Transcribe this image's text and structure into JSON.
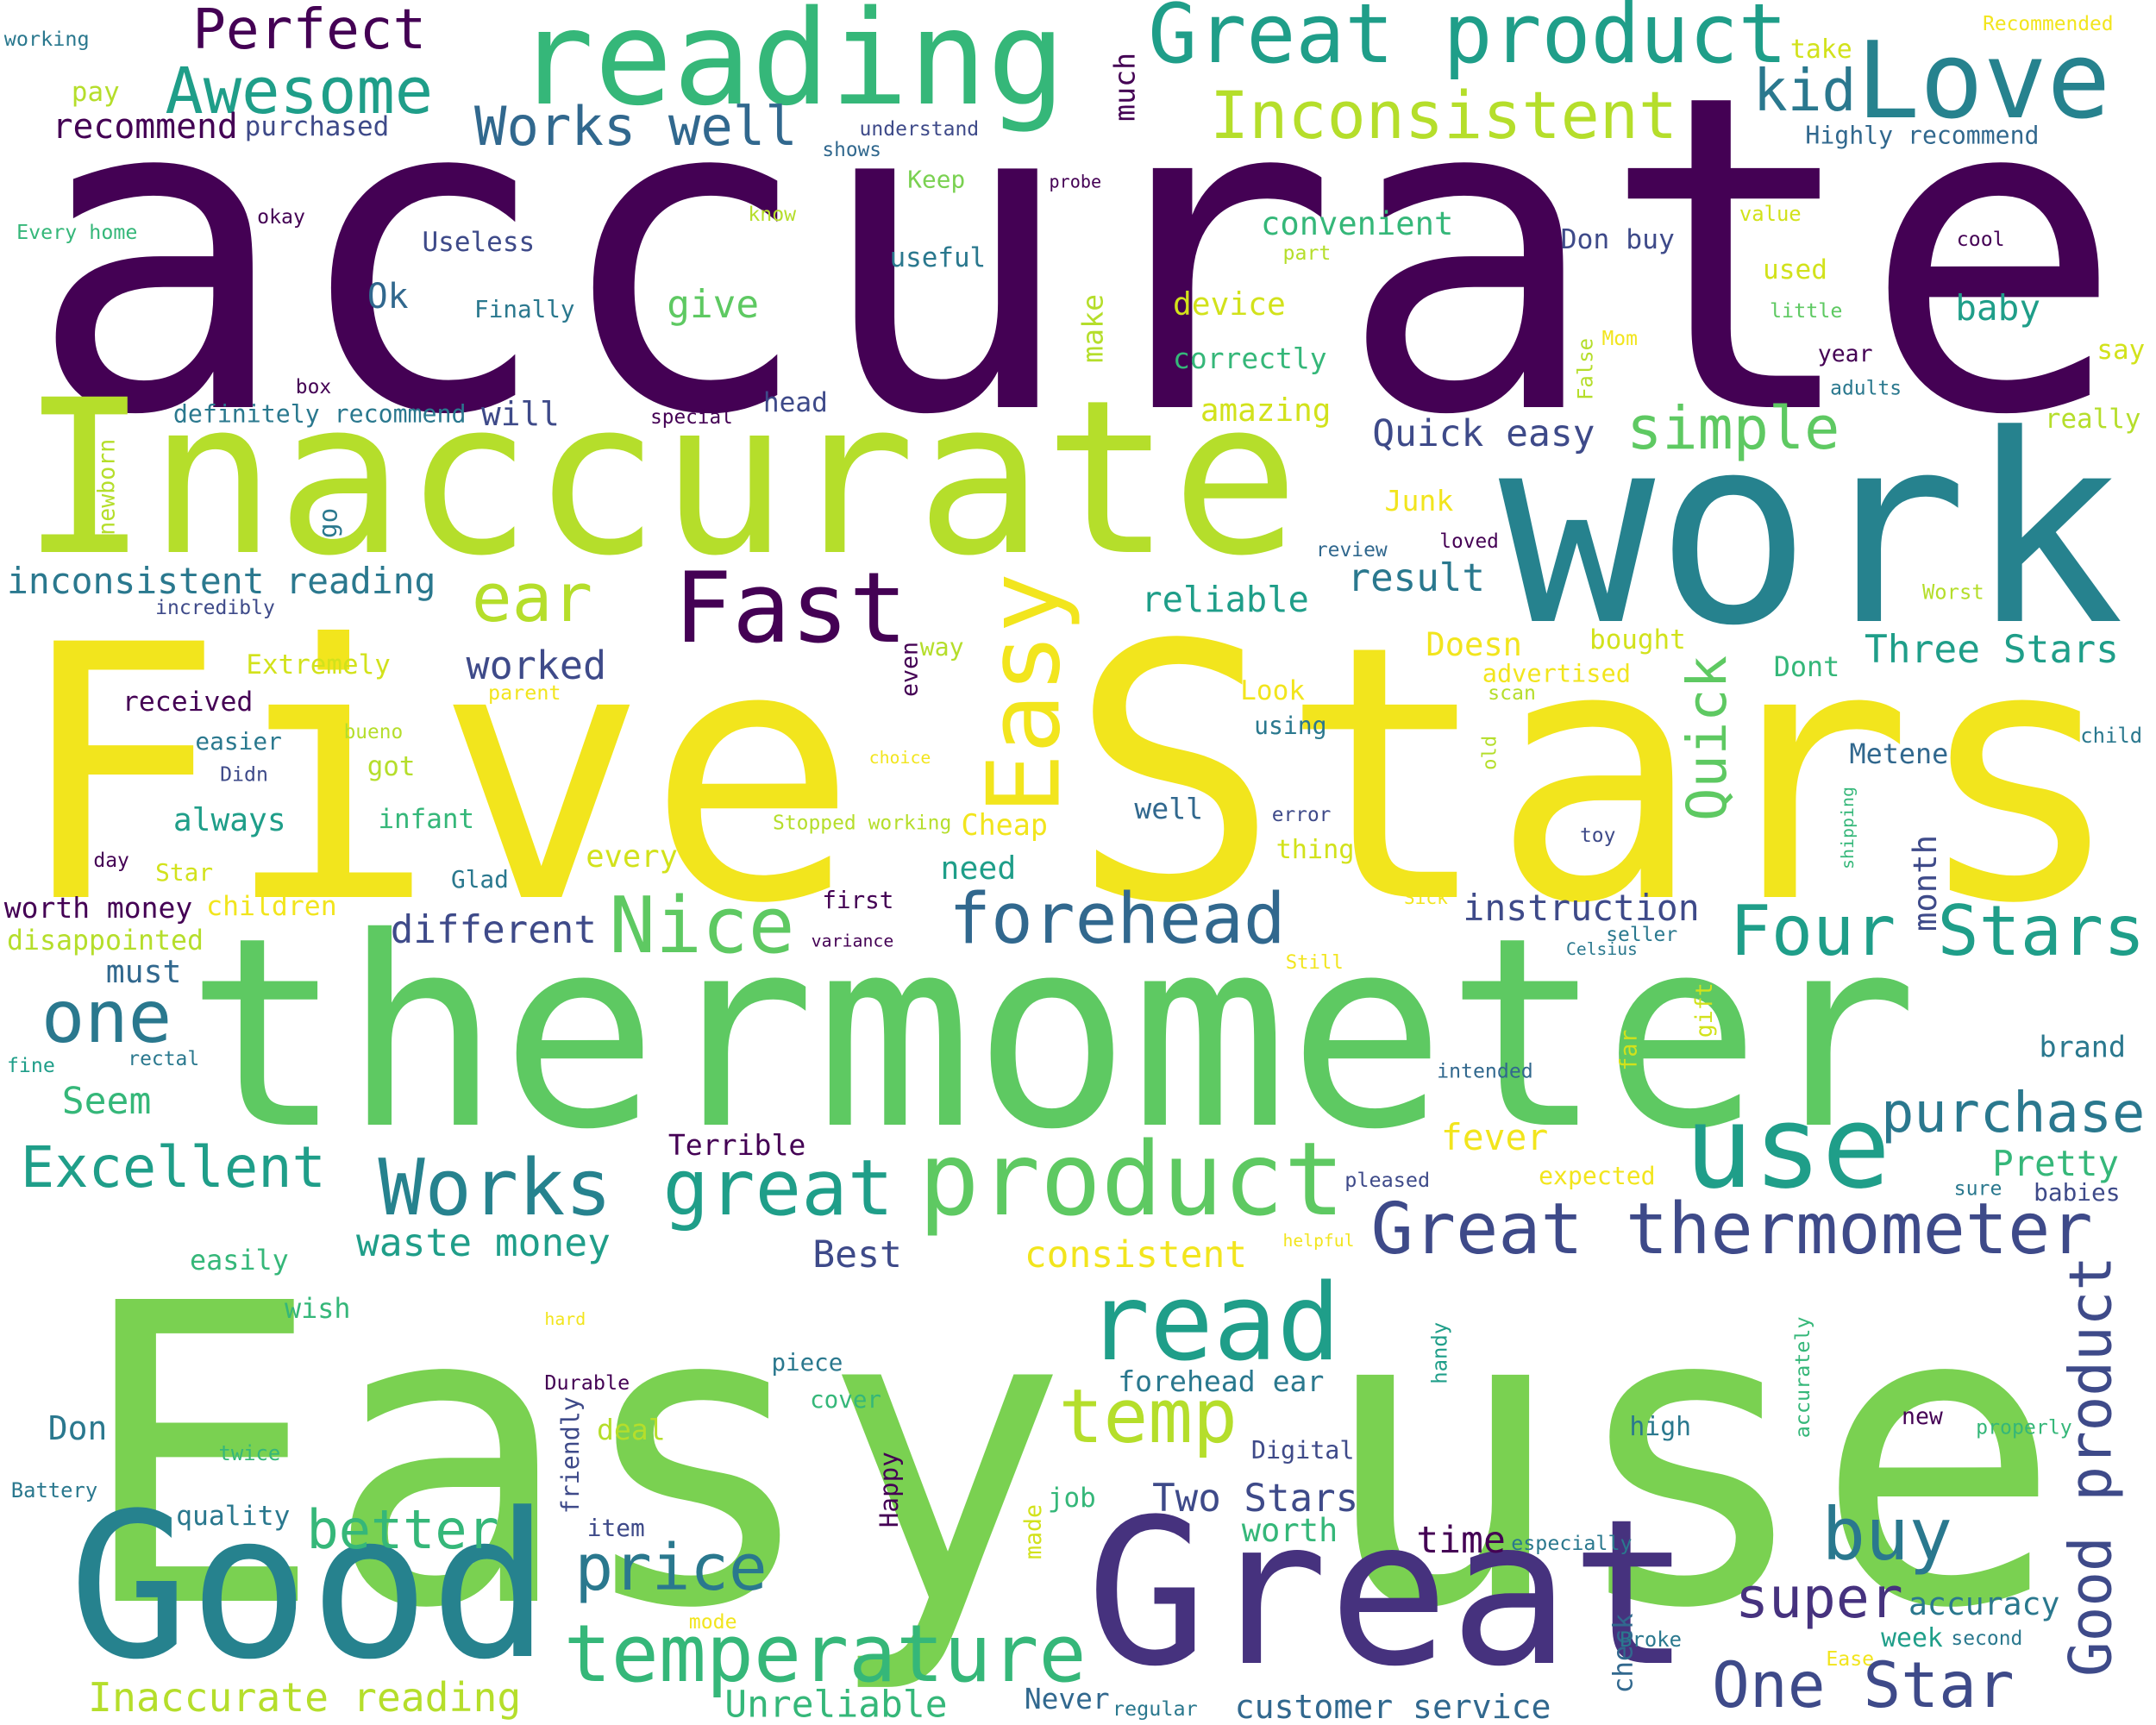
{
  "words": [
    "accurate",
    "Five Stars",
    "thermometer",
    "Easy use",
    "Inaccurate",
    "work",
    "Good",
    "Great",
    "reading",
    "Great product",
    "Love",
    "Inconsistent",
    "Perfect",
    "Awesome",
    "Works well",
    "kid",
    "recommend",
    "purchased",
    "pay",
    "working",
    "Recommended",
    "take",
    "much",
    "understand",
    "shows",
    "Highly recommend",
    "Keep",
    "probe",
    "Every home",
    "okay",
    "know",
    "value",
    "convenient",
    "Useless",
    "useful",
    "Don buy",
    "cool",
    "part",
    "used",
    "Ok",
    "Finally",
    "give",
    "device",
    "little",
    "baby",
    "make",
    "correctly",
    "False",
    "Mom",
    "year",
    "say",
    "box",
    "adults",
    "definitely recommend",
    "will",
    "special",
    "head",
    "amazing",
    "simple",
    "really",
    "Quick easy",
    "newborn",
    "go",
    "Junk",
    "loved",
    "review",
    "Easy",
    "Fast",
    "ear",
    "inconsistent reading",
    "incredibly",
    "result",
    "reliable",
    "Worst",
    "Extremely",
    "worked",
    "even",
    "way",
    "Doesn",
    "bought",
    "Three Stars",
    "Quick",
    "advertised",
    "Dont",
    "parent",
    "Look",
    "scan",
    "received",
    "using",
    "old",
    "child",
    "easier",
    "bueno",
    "choice",
    "Metene",
    "Didn",
    "got",
    "always",
    "infant",
    "well",
    "error",
    "Stopped working",
    "Cheap",
    "shipping",
    "toy",
    "thing",
    "month",
    "day",
    "Star",
    "every",
    "Glad",
    "need",
    "forehead",
    "Nice",
    "first",
    "Sick",
    "instruction",
    "Four Stars",
    "different",
    "worth money",
    "children",
    "seller",
    "disappointed",
    "variance",
    "Celsius",
    "Still",
    "gift",
    "one",
    "must",
    "fine",
    "rectal",
    "intended",
    "far",
    "brand",
    "Seem",
    "purchase",
    "use",
    "Terrible",
    "fever",
    "Excellent",
    "Works",
    "great",
    "product",
    "Pretty",
    "pleased",
    "expected",
    "sure",
    "babies",
    "Great thermometer",
    "waste money",
    "Best",
    "consistent",
    "easily",
    "helpful",
    "Good product",
    "read",
    "wish",
    "hard",
    "handy",
    "accurately",
    "piece",
    "Durable",
    "forehead ear",
    "cover",
    "friendly",
    "temp",
    "Don",
    "deal",
    "new",
    "high",
    "properly",
    "twice",
    "Digital",
    "Happy",
    "Battery",
    "made",
    "job",
    "Two Stars",
    "buy",
    "price",
    "better",
    "quality",
    "item",
    "worth",
    "time",
    "especially",
    "super",
    "accuracy",
    "check",
    "temperature",
    "mode",
    "Broke",
    "week",
    "second",
    "Ease",
    "One Star",
    "Inaccurate reading",
    "Unreliable",
    "Never",
    "regular",
    "customer service"
  ]
}
